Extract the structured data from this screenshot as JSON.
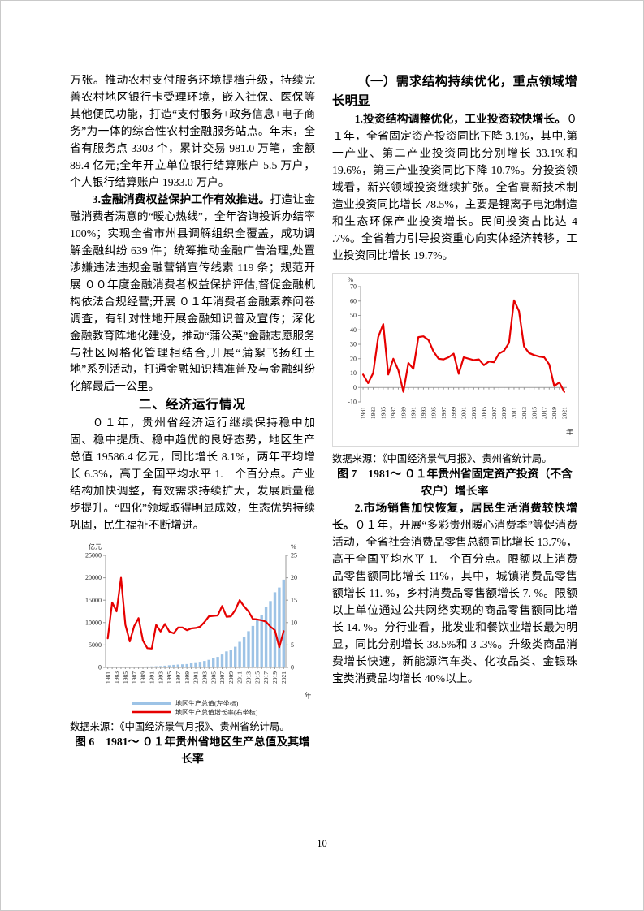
{
  "page_number": "10",
  "left_column": {
    "para1": "万张。推动农村支付服务环境提档升级，持续完善农村地区银行卡受理环境，嵌入社保、医保等其他便民功能，打造“支付服务+政务信息+电子商务”为一体的综合性农村金融服务站点。年末，全省有服务点 3303 个，累计交易 981.0 万笔，金额 89.4 亿元;全年开立单位银行结算账户 5.5 万户，个人银行结算账户 1933.0 万户。",
    "para2_lead": "3.金融消费权益保护工作有效推进。",
    "para2_rest": "打造让金融消费者满意的“暖心热线”，全年咨询投诉办结率 100%；实现全省市州县调解组织全覆盖，成功调解金融纠纷 639 件；统筹推动金融广告治理,处置涉嫌违法违规金融营销宣传线索 119 条；规范开展 ００年度金融消费者权益保护评估,督促金融机构依法合规经营;开展 ０１年消费者金融素养问卷调查，有针对性地开展金融知识普及宣传；深化金融教育阵地化建设，推动“蒲公英”金融志愿服务与社区网格化管理相结合,开展“蒲絮飞扬红土地”系列活动，打通金融知识精准普及与金融纠纷化解最后一公里。",
    "heading": "二、经济运行情况",
    "para3": "０１年，贵州省经济运行继续保持稳中加固、稳中提质、稳中趋优的良好态势，地区生产总值 19586.4 亿元，同比增长 8.1%，两年平均增长 6.3%，高于全国平均水平 1.　个百分点。产业结构加快调整，有效需求持续扩大，发展质量稳步提升。“四化”领域取得明显成效，生态优势持续巩固，民生福祉不断增进。",
    "fig6_source": "数据来源：《中国经济景气月报》、贵州省统计局。",
    "fig6_caption": "图 6　1981～ ０１年贵州省地区生产总值及其增长率"
  },
  "right_column": {
    "heading": "（一）需求结构持续优化，重点领域增长明显",
    "para1_lead": "1.投资结构调整优化，工业投资较快增长。",
    "para1_rest": "０１年，全省固定资产投资同比下降 3.1%，其中,第一产业、第二产业投资同比分别增长 33.1%和 19.6%，第三产业投资同比下降 10.7%。分投资领域看，新兴领域投资继续扩张。全省高新技术制造业投资同比增长 78.5%，主要是锂离子电池制造和生态环保产业投资增长。民间投资占比达 4 .7%。全省着力引导投资重心向实体经济转移，工业投资同比增长 19.7%。",
    "fig7_source": "数据来源：《中国经济景气月报》、贵州省统计局。",
    "fig7_caption": "图 7　1981～ ０１年贵州省固定资产投资（不含农户）增长率",
    "para2_lead": "2.市场销售加快恢复，居民生活消费较快增长。",
    "para2_rest": "０１年，开展“多彩贵州暖心消费季”等促消费活动，全省社会消费品零售总额同比增长 13.7%，高于全国平均水平 1.　个百分点。限额以上消费品零售额同比增长 11%，其中，城镇消费品零售额增长 11. %，乡村消费品零售额增长 7. %。限额以上单位通过公共网络实现的商品零售额同比增长 14. %。分行业看，批发业和餐饮业增长最为明显，同比分别增长 38.5%和 3 .3%。升级类商品消费增长快速，新能源汽车类、化妆品类、金银珠宝类消费品均增长 40%以上。"
  },
  "chart_data": [
    {
      "type": "bar",
      "title": "图 6 1981～ ０１年贵州省地区生产总值及其增长率",
      "x": [
        "1981",
        "1982",
        "1983",
        "1984",
        "1985",
        "1986",
        "1987",
        "1988",
        "1989",
        "1990",
        "1991",
        "1992",
        "1993",
        "1994",
        "1995",
        "1996",
        "1997",
        "1998",
        "1999",
        "2000",
        "2001",
        "2002",
        "2003",
        "2004",
        "2005",
        "2006",
        "2007",
        "2008",
        "2009",
        "2010",
        "2011",
        "2012",
        "2013",
        "2014",
        "2015",
        "2016",
        "2017",
        "2018",
        "2019",
        "2020",
        "2021"
      ],
      "series": [
        {
          "name": "地区生产总值(左坐标)",
          "type": "bar",
          "axis": "left",
          "color": "#9dc3e6",
          "values": [
            47,
            55,
            62,
            75,
            87,
            99,
            118,
            149,
            169,
            191,
            215,
            249,
            298,
            382,
            478,
            557,
            642,
            693,
            741,
            1030,
            1133,
            1243,
            1426,
            1678,
            2005,
            2339,
            2884,
            3561,
            3913,
            4602,
            5702,
            6852,
            8087,
            9266,
            10503,
            11777,
            13541,
            14806,
            16769,
            17827,
            19586
          ]
        },
        {
          "name": "地区生产总值增长率(右坐标)",
          "type": "line",
          "axis": "right",
          "color": "#e60000",
          "values": [
            6.5,
            14.5,
            12.5,
            20.0,
            9.5,
            5.8,
            9.2,
            11.0,
            6.0,
            4.3,
            4.2,
            9.5,
            8.0,
            9.7,
            8.0,
            7.6,
            8.9,
            8.9,
            8.3,
            8.7,
            8.8,
            9.1,
            10.1,
            11.4,
            11.5,
            11.6,
            13.7,
            11.3,
            11.4,
            12.8,
            15.0,
            13.6,
            12.5,
            10.8,
            10.7,
            10.5,
            10.2,
            9.1,
            8.3,
            4.5,
            8.1
          ]
        }
      ],
      "ylabel_left": "亿元",
      "ylabel_right": "%",
      "xlabel": "年",
      "ylim_left": [
        0,
        25000
      ],
      "yticks_left": [
        0,
        5000,
        10000,
        15000,
        20000,
        25000
      ],
      "ylim_right": [
        0,
        25
      ],
      "yticks_right": [
        0,
        5,
        10,
        15,
        20,
        25
      ],
      "legend_position": "bottom",
      "grid": false
    },
    {
      "type": "line",
      "title": "图 7 1981～ ０１年贵州省固定资产投资（不含农户）增长率",
      "x": [
        "1981",
        "1982",
        "1983",
        "1984",
        "1985",
        "1986",
        "1987",
        "1988",
        "1989",
        "1990",
        "1991",
        "1992",
        "1993",
        "1994",
        "1995",
        "1996",
        "1997",
        "1998",
        "1999",
        "2000",
        "2001",
        "2002",
        "2003",
        "2004",
        "2005",
        "2006",
        "2007",
        "2008",
        "2009",
        "2010",
        "2011",
        "2012",
        "2013",
        "2014",
        "2015",
        "2016",
        "2017",
        "2018",
        "2019",
        "2020",
        "2021"
      ],
      "series": [
        {
          "name": "固定资产投资增长率",
          "type": "line",
          "color": "#e60000",
          "values": [
            9.0,
            3.0,
            10.0,
            35.0,
            44.0,
            9.0,
            20.0,
            12.0,
            -3.0,
            17.0,
            13.0,
            35.0,
            35.5,
            33.0,
            25.0,
            20.0,
            19.5,
            21.0,
            23.5,
            9.5,
            21.0,
            20.0,
            19.0,
            19.5,
            15.5,
            18.0,
            17.5,
            23.5,
            25.5,
            31.0,
            60.5,
            53.0,
            28.5,
            24.0,
            22.5,
            21.5,
            21.0,
            16.0,
            1.0,
            3.5,
            -3.1
          ]
        }
      ],
      "ylabel": "%",
      "xlabel": "年",
      "ylim": [
        -10,
        70
      ],
      "yticks": [
        -10,
        0,
        10,
        20,
        30,
        40,
        50,
        60,
        70
      ],
      "legend_position": "none",
      "grid": false
    }
  ]
}
